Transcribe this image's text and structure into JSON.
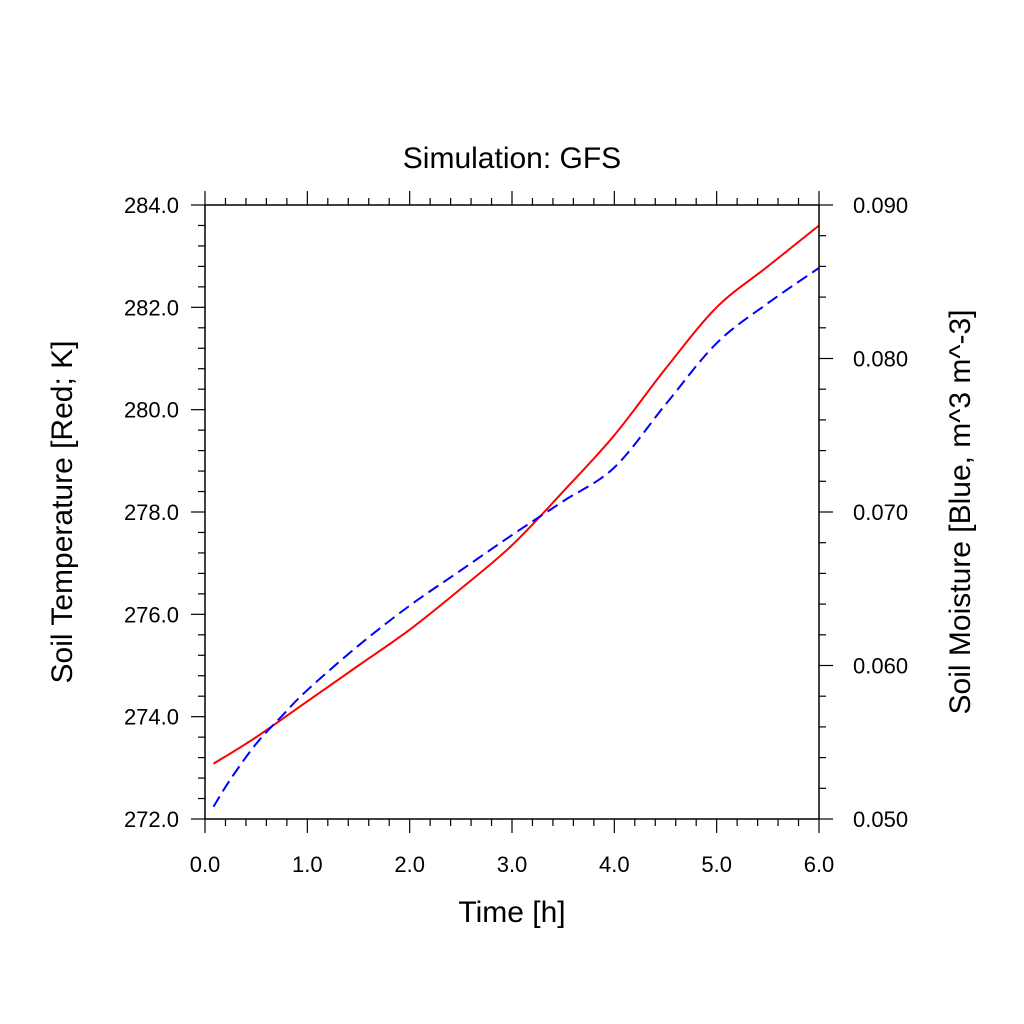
{
  "chart_data": {
    "type": "line",
    "title": "Simulation: GFS",
    "xlabel": "Time [h]",
    "ylabel_left": "Soil Temperature [Red; K]",
    "ylabel_right": "Soil Moisture [Blue, m^3 m^-3]",
    "xlim": [
      0,
      6
    ],
    "ylim_left": [
      272,
      284
    ],
    "ylim_right": [
      0.05,
      0.09
    ],
    "x_ticks": [
      {
        "value": 0,
        "label": "0.0"
      },
      {
        "value": 1,
        "label": "1.0"
      },
      {
        "value": 2,
        "label": "2.0"
      },
      {
        "value": 3,
        "label": "3.0"
      },
      {
        "value": 4,
        "label": "4.0"
      },
      {
        "value": 5,
        "label": "5.0"
      },
      {
        "value": 6,
        "label": "6.0"
      }
    ],
    "y_ticks_left": [
      {
        "value": 272,
        "label": "272.0"
      },
      {
        "value": 274,
        "label": "274.0"
      },
      {
        "value": 276,
        "label": "276.0"
      },
      {
        "value": 278,
        "label": "278.0"
      },
      {
        "value": 280,
        "label": "280.0"
      },
      {
        "value": 282,
        "label": "282.0"
      },
      {
        "value": 284,
        "label": "284.0"
      }
    ],
    "y_ticks_right": [
      {
        "value": 0.05,
        "label": "0.050"
      },
      {
        "value": 0.06,
        "label": "0.060"
      },
      {
        "value": 0.07,
        "label": "0.070"
      },
      {
        "value": 0.08,
        "label": "0.080"
      },
      {
        "value": 0.09,
        "label": "0.090"
      }
    ],
    "grid": false,
    "series": [
      {
        "axis": "left",
        "color": "#ff0000",
        "dash": "solid",
        "x": [
          0.083,
          0.5,
          1.0,
          1.5,
          2.0,
          2.5,
          3.0,
          3.5,
          4.0,
          4.5,
          5.0,
          5.5,
          6.0
        ],
        "y": [
          273.08,
          273.6,
          274.3,
          275.0,
          275.7,
          276.5,
          277.35,
          278.4,
          279.5,
          280.8,
          282.0,
          282.8,
          283.6
        ]
      },
      {
        "axis": "right",
        "color": "#0000ff",
        "dash": "dashed",
        "x": [
          0.083,
          0.25,
          0.5,
          0.75,
          1.0,
          1.5,
          2.0,
          2.5,
          3.0,
          3.5,
          4.0,
          4.5,
          5.0,
          5.5,
          6.0
        ],
        "y": [
          0.0508,
          0.0526,
          0.0549,
          0.0567,
          0.0584,
          0.0613,
          0.0639,
          0.0662,
          0.0685,
          0.0707,
          0.0729,
          0.077,
          0.081,
          0.0836,
          0.0859
        ]
      }
    ]
  }
}
